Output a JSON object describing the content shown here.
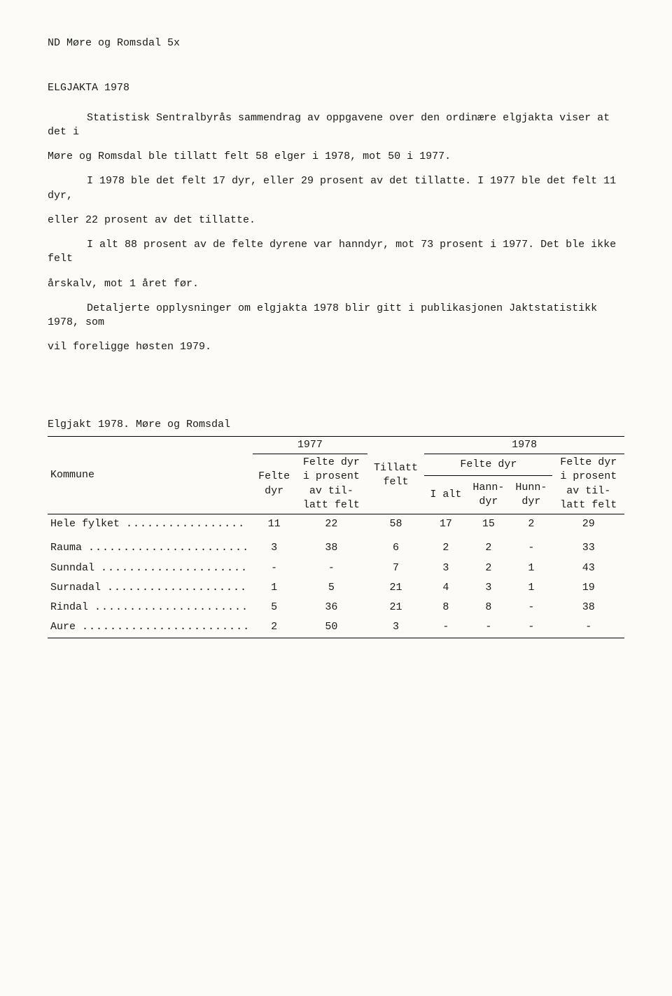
{
  "header": "ND  Møre og Romsdal  5x",
  "title": "ELGJAKTA 1978",
  "paragraphs": {
    "p1a": "Statistisk Sentralbyrås sammendrag av oppgavene over den ordinære elgjakta viser at det i",
    "p1b": "Møre og Romsdal ble tillatt felt 58 elger i 1978, mot 50 i 1977.",
    "p2a": "I 1978 ble det felt 17 dyr, eller 29 prosent av det tillatte.  I 1977 ble det felt 11 dyr,",
    "p2b": "eller 22 prosent av det tillatte.",
    "p3a": "I alt 88 prosent av de felte dyrene var hanndyr, mot 73 prosent i 1977.  Det ble ikke felt",
    "p3b": "årskalv, mot 1 året før.",
    "p4a": "Detaljerte opplysninger om elgjakta 1978 blir gitt i publikasjonen Jaktstatistikk 1978, som",
    "p4b": "vil foreligge høsten 1979."
  },
  "table": {
    "caption": "Elgjakt 1978.  Møre og Romsdal",
    "head": {
      "kommune": "Kommune",
      "y1977": "1977",
      "y1978": "1978",
      "felte_dyr_77": "Felte dyr",
      "felte_dyr_pct_1": "Felte dyr i prosent av til-latt felt",
      "tillatt_felt": "Tillatt felt",
      "felte_dyr_78": "Felte dyr",
      "i_alt": "I alt",
      "hanndyr": "Hann-dyr",
      "hunndyr": "Hunn-dyr",
      "felte_dyr_pct_2": "Felte dyr i prosent av til-latt felt"
    },
    "rows": [
      {
        "kommune": "Hele fylket",
        "felte77": "11",
        "pct77": "22",
        "tillatt": "58",
        "ialt": "17",
        "hann": "15",
        "hunn": "2",
        "pct78": "29"
      },
      {
        "kommune": "Rauma",
        "felte77": "3",
        "pct77": "38",
        "tillatt": "6",
        "ialt": "2",
        "hann": "2",
        "hunn": "-",
        "pct78": "33"
      },
      {
        "kommune": "Sunndal",
        "felte77": "-",
        "pct77": "-",
        "tillatt": "7",
        "ialt": "3",
        "hann": "2",
        "hunn": "1",
        "pct78": "43"
      },
      {
        "kommune": "Surnadal",
        "felte77": "1",
        "pct77": "5",
        "tillatt": "21",
        "ialt": "4",
        "hann": "3",
        "hunn": "1",
        "pct78": "19"
      },
      {
        "kommune": "Rindal",
        "felte77": "5",
        "pct77": "36",
        "tillatt": "21",
        "ialt": "8",
        "hann": "8",
        "hunn": "-",
        "pct78": "38"
      },
      {
        "kommune": "Aure",
        "felte77": "2",
        "pct77": "50",
        "tillatt": "3",
        "ialt": "-",
        "hann": "-",
        "hunn": "-",
        "pct78": "-"
      }
    ]
  }
}
